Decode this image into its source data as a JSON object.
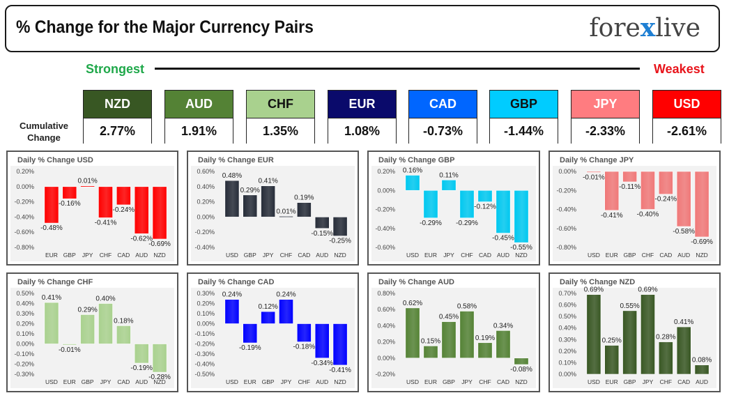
{
  "header": {
    "title": "% Change for the Major Currency Pairs",
    "logo_left": "fore",
    "logo_x": "x",
    "logo_right": "live"
  },
  "scale": {
    "strongest": "Strongest",
    "weakest": "Weakest"
  },
  "cumulative_label_line1": "Cumulative",
  "cumulative_label_line2": "Change",
  "currencies": [
    {
      "code": "NZD",
      "value": "2.77%",
      "bg": "#385723",
      "fg": "#ffffff"
    },
    {
      "code": "AUD",
      "value": "1.91%",
      "bg": "#548235",
      "fg": "#ffffff"
    },
    {
      "code": "CHF",
      "value": "1.35%",
      "bg": "#a9d18e",
      "fg": "#111111"
    },
    {
      "code": "EUR",
      "value": "1.08%",
      "bg": "#0a0a6b",
      "fg": "#ffffff"
    },
    {
      "code": "CAD",
      "value": "-0.73%",
      "bg": "#0066ff",
      "fg": "#ffffff"
    },
    {
      "code": "GBP",
      "value": "-1.44%",
      "bg": "#00ccff",
      "fg": "#111111"
    },
    {
      "code": "JPY",
      "value": "-2.33%",
      "bg": "#ff7c80",
      "fg": "#ffffff"
    },
    {
      "code": "USD",
      "value": "-2.61%",
      "bg": "#ff0000",
      "fg": "#ffffff"
    }
  ],
  "chart_data": [
    {
      "type": "bar",
      "title": "Daily % Change USD",
      "color": "#ff0000",
      "categories": [
        "EUR",
        "GBP",
        "JPY",
        "CHF",
        "CAD",
        "AUD",
        "NZD"
      ],
      "values": [
        -0.48,
        -0.16,
        0.01,
        -0.41,
        -0.24,
        -0.62,
        -0.69
      ],
      "labels": [
        "-0.48%",
        "-0.16%",
        "0.01%",
        "-0.41%",
        "-0.24%",
        "-0.62%",
        "-0.69%"
      ],
      "ylim": [
        -0.8,
        0.2
      ],
      "yticks": [
        0.2,
        0.0,
        -0.2,
        -0.4,
        -0.6,
        -0.8
      ],
      "ytick_labels": [
        "0.20%",
        "0.00%",
        "-0.20%",
        "-0.40%",
        "-0.60%",
        "-0.80%"
      ]
    },
    {
      "type": "bar",
      "title": "Daily % Change EUR",
      "color": "#262c38",
      "categories": [
        "USD",
        "GBP",
        "JPY",
        "CHF",
        "CAD",
        "AUD",
        "NZD"
      ],
      "values": [
        0.48,
        0.29,
        0.41,
        0.01,
        0.19,
        -0.15,
        -0.25
      ],
      "labels": [
        "0.48%",
        "0.29%",
        "0.41%",
        "0.01%",
        "0.19%",
        "-0.15%",
        "-0.25%"
      ],
      "ylim": [
        -0.4,
        0.6
      ],
      "yticks": [
        0.6,
        0.4,
        0.2,
        0.0,
        -0.2,
        -0.4
      ],
      "ytick_labels": [
        "0.60%",
        "0.40%",
        "0.20%",
        "0.00%",
        "-0.20%",
        "-0.40%"
      ]
    },
    {
      "type": "bar",
      "title": "Daily % Change GBP",
      "color": "#00c8f0",
      "categories": [
        "USD",
        "EUR",
        "JPY",
        "CHF",
        "CAD",
        "AUD",
        "NZD"
      ],
      "values": [
        0.16,
        -0.29,
        0.11,
        -0.29,
        -0.12,
        -0.45,
        -0.55
      ],
      "labels": [
        "0.16%",
        "-0.29%",
        "0.11%",
        "-0.29%",
        "-0.12%",
        "-0.45%",
        "-0.55%"
      ],
      "ylim": [
        -0.6,
        0.2
      ],
      "yticks": [
        0.2,
        0.0,
        -0.2,
        -0.4,
        -0.6
      ],
      "ytick_labels": [
        "0.20%",
        "0.00%",
        "-0.20%",
        "-0.40%",
        "-0.60%"
      ]
    },
    {
      "type": "bar",
      "title": "Daily % Change JPY",
      "color": "#f07878",
      "categories": [
        "USD",
        "EUR",
        "GBP",
        "CHF",
        "CAD",
        "AUD",
        "NZD"
      ],
      "values": [
        -0.01,
        -0.41,
        -0.11,
        -0.4,
        -0.24,
        -0.58,
        -0.69
      ],
      "labels": [
        "-0.01%",
        "-0.41%",
        "-0.11%",
        "-0.40%",
        "-0.24%",
        "-0.58%",
        "-0.69%"
      ],
      "ylim": [
        -0.8,
        0.0
      ],
      "yticks": [
        0.0,
        -0.2,
        -0.4,
        -0.6,
        -0.8
      ],
      "ytick_labels": [
        "0.00%",
        "-0.20%",
        "-0.40%",
        "-0.60%",
        "-0.80%"
      ]
    },
    {
      "type": "bar",
      "title": "Daily % Change CHF",
      "color": "#a9d18e",
      "categories": [
        "USD",
        "EUR",
        "GBP",
        "JPY",
        "CAD",
        "AUD",
        "NZD"
      ],
      "values": [
        0.41,
        -0.01,
        0.29,
        0.4,
        0.18,
        -0.19,
        -0.28
      ],
      "labels": [
        "0.41%",
        "-0.01%",
        "0.29%",
        "0.40%",
        "0.18%",
        "-0.19%",
        "-0.28%"
      ],
      "ylim": [
        -0.3,
        0.5
      ],
      "yticks": [
        0.5,
        0.4,
        0.3,
        0.2,
        0.1,
        0.0,
        -0.1,
        -0.2,
        -0.3
      ],
      "ytick_labels": [
        "0.50%",
        "0.40%",
        "0.30%",
        "0.20%",
        "0.10%",
        "0.00%",
        "-0.10%",
        "-0.20%",
        "-0.30%"
      ]
    },
    {
      "type": "bar",
      "title": "Daily % Change CAD",
      "color": "#0000ff",
      "categories": [
        "USD",
        "EUR",
        "GBP",
        "JPY",
        "CHF",
        "AUD",
        "NZD"
      ],
      "values": [
        0.24,
        -0.19,
        0.12,
        0.24,
        -0.18,
        -0.34,
        -0.41
      ],
      "labels": [
        "0.24%",
        "-0.19%",
        "0.12%",
        "0.24%",
        "-0.18%",
        "-0.34%",
        "-0.41%"
      ],
      "ylim": [
        -0.5,
        0.3
      ],
      "yticks": [
        0.3,
        0.2,
        0.1,
        0.0,
        -0.1,
        -0.2,
        -0.3,
        -0.4,
        -0.5
      ],
      "ytick_labels": [
        "0.30%",
        "0.20%",
        "0.10%",
        "0.00%",
        "-0.10%",
        "-0.20%",
        "-0.30%",
        "-0.40%",
        "-0.50%"
      ]
    },
    {
      "type": "bar",
      "title": "Daily % Change AUD",
      "color": "#548235",
      "categories": [
        "USD",
        "EUR",
        "GBP",
        "JPY",
        "CHF",
        "CAD",
        "NZD"
      ],
      "values": [
        0.62,
        0.15,
        0.45,
        0.58,
        0.19,
        0.34,
        -0.08
      ],
      "labels": [
        "0.62%",
        "0.15%",
        "0.45%",
        "0.58%",
        "0.19%",
        "0.34%",
        "-0.08%"
      ],
      "ylim": [
        -0.2,
        0.8
      ],
      "yticks": [
        0.8,
        0.6,
        0.4,
        0.2,
        0.0,
        -0.2
      ],
      "ytick_labels": [
        "0.80%",
        "0.60%",
        "0.40%",
        "0.20%",
        "0.00%",
        "-0.20%"
      ]
    },
    {
      "type": "bar",
      "title": "Daily % Change NZD",
      "color": "#385723",
      "categories": [
        "USD",
        "EUR",
        "GBP",
        "JPY",
        "CHF",
        "CAD",
        "AUD"
      ],
      "values": [
        0.69,
        0.25,
        0.55,
        0.69,
        0.28,
        0.41,
        0.08
      ],
      "labels": [
        "0.69%",
        "0.25%",
        "0.55%",
        "0.69%",
        "0.28%",
        "0.41%",
        "0.08%"
      ],
      "ylim": [
        0.0,
        0.7
      ],
      "yticks": [
        0.7,
        0.6,
        0.5,
        0.4,
        0.3,
        0.2,
        0.1,
        0.0
      ],
      "ytick_labels": [
        "0.70%",
        "0.60%",
        "0.50%",
        "0.40%",
        "0.30%",
        "0.20%",
        "0.10%",
        "0.00%"
      ]
    }
  ]
}
